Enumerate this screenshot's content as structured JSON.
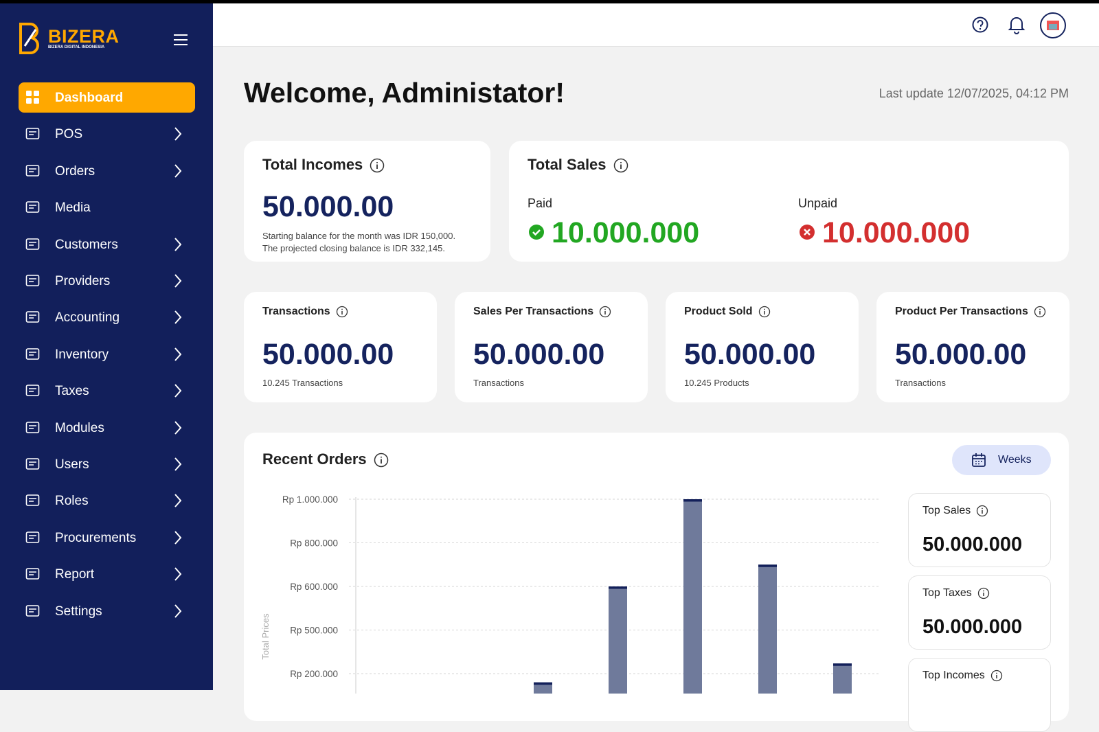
{
  "brand": {
    "name": "BIZERA",
    "tagline": "BIZERA DIGITAL INDONESIA"
  },
  "sidebar": {
    "items": [
      {
        "label": "Dashboard",
        "active": true,
        "expandable": false
      },
      {
        "label": "POS",
        "active": false,
        "expandable": true
      },
      {
        "label": "Orders",
        "active": false,
        "expandable": true
      },
      {
        "label": "Media",
        "active": false,
        "expandable": false
      },
      {
        "label": "Customers",
        "active": false,
        "expandable": true
      },
      {
        "label": "Providers",
        "active": false,
        "expandable": true
      },
      {
        "label": "Accounting",
        "active": false,
        "expandable": true
      },
      {
        "label": "Inventory",
        "active": false,
        "expandable": true
      },
      {
        "label": "Taxes",
        "active": false,
        "expandable": true
      },
      {
        "label": "Modules",
        "active": false,
        "expandable": true
      },
      {
        "label": "Users",
        "active": false,
        "expandable": true
      },
      {
        "label": "Roles",
        "active": false,
        "expandable": true
      },
      {
        "label": "Procurements",
        "active": false,
        "expandable": true
      },
      {
        "label": "Report",
        "active": false,
        "expandable": true
      },
      {
        "label": "Settings",
        "active": false,
        "expandable": true
      }
    ]
  },
  "main": {
    "title": "Welcome, Administator!",
    "last_update": "Last update 12/07/2025, 04:12 PM"
  },
  "total_incomes": {
    "title": "Total Incomes",
    "value": "50.000.00",
    "note_lines": [
      "Starting balance for the month was IDR 150,000.",
      "The projected closing balance is IDR 332,145."
    ]
  },
  "total_sales": {
    "title": "Total Sales",
    "paid_label": "Paid",
    "paid_value": "10.000.000",
    "unpaid_label": "Unpaid",
    "unpaid_value": "10.000.000"
  },
  "stats": [
    {
      "title": "Transactions",
      "value": "50.000.00",
      "note": "10.245 Transactions"
    },
    {
      "title": "Sales Per Transactions",
      "value": "50.000.00",
      "note": "Transactions"
    },
    {
      "title": "Product Sold",
      "value": "50.000.00",
      "note": "10.245 Products"
    },
    {
      "title": "Product Per Transactions",
      "value": "50.000.00",
      "note": "Transactions"
    }
  ],
  "recent_orders": {
    "title": "Recent Orders",
    "period_button": "Weeks",
    "side_cards": [
      {
        "title": "Top Sales",
        "value": "50.000.000"
      },
      {
        "title": "Top Taxes",
        "value": "50.000.000"
      },
      {
        "title": "Top Incomes"
      }
    ],
    "chart": {
      "type": "bar",
      "ylabel": "Total Prices",
      "categories": [
        null,
        null,
        null,
        null,
        null,
        null,
        null
      ],
      "values": [
        null,
        null,
        140000,
        600000,
        1000000,
        700000,
        270000
      ],
      "color": "#6f7a9b",
      "cap_color": "#13205a",
      "yticks": [
        {
          "value": 1000000,
          "label": "Rp 1.000.000"
        },
        {
          "value": 800000,
          "label": "Rp 800.000"
        },
        {
          "value": 600000,
          "label": "Rp 600.000"
        },
        {
          "value": 500000,
          "label": "Rp 500.000"
        },
        {
          "value": 200000,
          "label": "Rp 200.000"
        }
      ],
      "grid": true
    }
  }
}
